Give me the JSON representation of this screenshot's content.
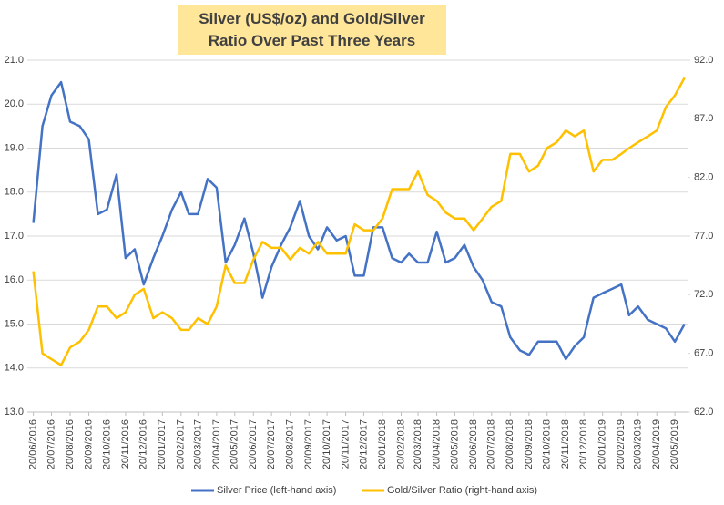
{
  "chart_data": {
    "type": "line",
    "title": "Silver (US$/oz) and Gold/Silver Ratio Over Past Three Years",
    "x": [
      "20/06/2016",
      "05/07/2016",
      "20/07/2016",
      "05/08/2016",
      "20/08/2016",
      "05/09/2016",
      "20/09/2016",
      "05/10/2016",
      "20/10/2016",
      "05/11/2016",
      "20/11/2016",
      "05/12/2016",
      "20/12/2016",
      "05/01/2017",
      "20/01/2017",
      "05/02/2017",
      "20/02/2017",
      "05/03/2017",
      "20/03/2017",
      "05/04/2017",
      "20/04/2017",
      "05/05/2017",
      "20/05/2017",
      "05/06/2017",
      "20/06/2017",
      "05/07/2017",
      "20/07/2017",
      "05/08/2017",
      "20/08/2017",
      "05/09/2017",
      "20/09/2017",
      "05/10/2017",
      "20/10/2017",
      "05/11/2017",
      "20/11/2017",
      "05/12/2017",
      "20/12/2017",
      "05/01/2018",
      "20/01/2018",
      "05/02/2018",
      "20/02/2018",
      "05/03/2018",
      "20/03/2018",
      "05/04/2018",
      "20/04/2018",
      "05/05/2018",
      "20/05/2018",
      "05/06/2018",
      "20/06/2018",
      "05/07/2018",
      "20/07/2018",
      "05/08/2018",
      "20/08/2018",
      "05/09/2018",
      "20/09/2018",
      "05/10/2018",
      "20/10/2018",
      "05/11/2018",
      "20/11/2018",
      "05/12/2018",
      "20/12/2018",
      "05/01/2019",
      "20/01/2019",
      "05/02/2019",
      "20/02/2019",
      "05/03/2019",
      "20/03/2019",
      "05/04/2019",
      "20/04/2019",
      "05/05/2019",
      "20/05/2019",
      "05/06/2019"
    ],
    "series": [
      {
        "name": "Silver Price (left-hand axis)",
        "color": "#4472c4",
        "axis": "y",
        "values": [
          17.3,
          19.5,
          20.2,
          20.5,
          19.6,
          19.5,
          19.2,
          17.5,
          17.6,
          18.4,
          16.5,
          16.7,
          15.9,
          16.5,
          17.0,
          17.6,
          18.0,
          17.5,
          17.5,
          18.3,
          18.1,
          16.4,
          16.8,
          17.4,
          16.6,
          15.6,
          16.3,
          16.8,
          17.2,
          17.8,
          17.0,
          16.7,
          17.2,
          16.9,
          17.0,
          16.1,
          16.1,
          17.2,
          17.2,
          16.5,
          16.4,
          16.6,
          16.4,
          16.4,
          17.1,
          16.4,
          16.5,
          16.8,
          16.3,
          16.0,
          15.5,
          15.4,
          14.7,
          14.4,
          14.3,
          14.6,
          14.6,
          14.6,
          14.2,
          14.5,
          14.7,
          15.6,
          15.7,
          15.8,
          15.9,
          15.2,
          15.4,
          15.1,
          15.0,
          14.9,
          14.6,
          15.0
        ]
      },
      {
        "name": "Gold/Silver Ratio (right-hand axis)",
        "color": "#ffc000",
        "axis": "y2",
        "values": [
          74,
          67,
          66.5,
          66,
          67.5,
          68,
          69,
          71,
          71,
          70,
          70.5,
          72,
          72.5,
          70,
          70.5,
          70,
          69,
          69,
          70,
          69.5,
          71,
          74.5,
          73,
          73,
          75,
          76.5,
          76,
          76,
          75,
          76,
          75.5,
          76.5,
          75.5,
          75.5,
          75.5,
          78,
          77.5,
          77.5,
          78.5,
          81,
          81,
          81,
          82.5,
          80.5,
          80,
          79,
          78.5,
          78.5,
          77.5,
          78.5,
          79.5,
          80,
          84,
          84,
          82.5,
          83,
          84.5,
          85,
          86,
          85.5,
          86,
          82.5,
          83.5,
          83.5,
          84,
          84.5,
          85,
          85.5,
          86,
          88,
          89,
          90.5
        ]
      }
    ],
    "xlim": [
      "10/06/2016",
      "10/06/2019"
    ],
    "xticks": [
      "20/06/2016",
      "20/07/2016",
      "20/08/2016",
      "20/09/2016",
      "20/10/2016",
      "20/11/2016",
      "20/12/2016",
      "20/01/2017",
      "20/02/2017",
      "20/03/2017",
      "20/04/2017",
      "20/05/2017",
      "20/06/2017",
      "20/07/2017",
      "20/08/2017",
      "20/09/2017",
      "20/10/2017",
      "20/11/2017",
      "20/12/2017",
      "20/01/2018",
      "20/02/2018",
      "20/03/2018",
      "20/04/2018",
      "20/05/2018",
      "20/06/2018",
      "20/07/2018",
      "20/08/2018",
      "20/09/2018",
      "20/10/2018",
      "20/11/2018",
      "20/12/2018",
      "20/01/2019",
      "20/02/2019",
      "20/03/2019",
      "20/04/2019",
      "20/05/2019"
    ],
    "ylim": [
      13,
      21
    ],
    "yticks": [
      {
        "value": 13,
        "label": "13.0"
      },
      {
        "value": 14,
        "label": "14.0"
      },
      {
        "value": 15,
        "label": "15.0"
      },
      {
        "value": 16,
        "label": "16.0"
      },
      {
        "value": 17,
        "label": "17.0"
      },
      {
        "value": 18,
        "label": "18.0"
      },
      {
        "value": 19,
        "label": "19.0"
      },
      {
        "value": 20,
        "label": "20.0"
      },
      {
        "value": 21,
        "label": "21.0"
      }
    ],
    "y2lim": [
      62,
      92
    ],
    "y2ticks": [
      {
        "value": 62,
        "label": "62.0"
      },
      {
        "value": 67,
        "label": "67.0"
      },
      {
        "value": 72,
        "label": "72.0"
      },
      {
        "value": 77,
        "label": "77.0"
      },
      {
        "value": 82,
        "label": "82.0"
      },
      {
        "value": 87,
        "label": "87.0"
      },
      {
        "value": 92,
        "label": "92.0"
      }
    ],
    "grid": true,
    "legend": "bottom"
  }
}
